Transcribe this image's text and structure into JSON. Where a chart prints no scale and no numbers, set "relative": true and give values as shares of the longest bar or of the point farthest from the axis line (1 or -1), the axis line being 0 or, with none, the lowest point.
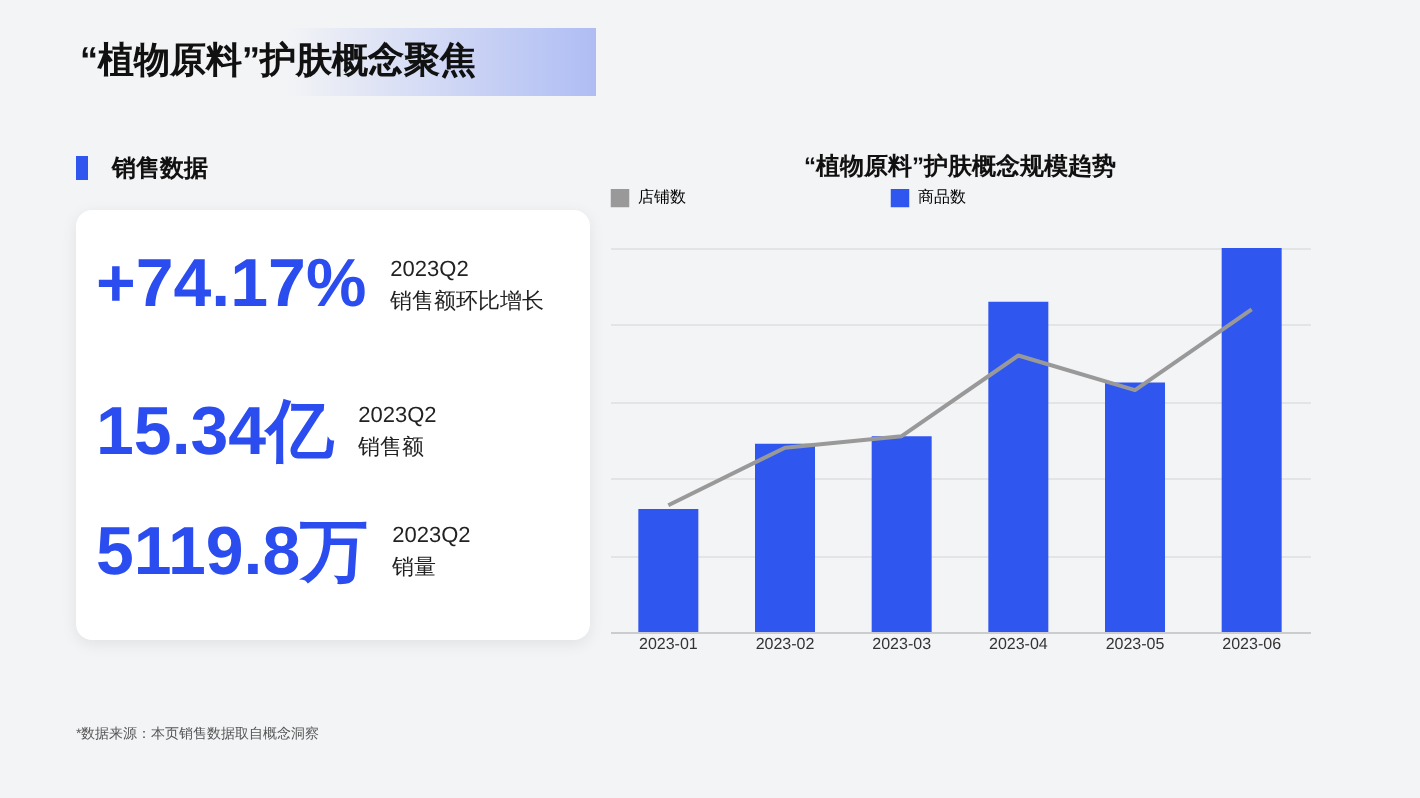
{
  "chart_data": [
    {
      "type": "other",
      "title": "“植物原料”护肤概念聚焦",
      "subtitle": "销售数据",
      "annotations": [
        "+74.17%",
        "2023Q2",
        "销售额环比增长",
        "15.34亿",
        "2023Q2",
        "销售额",
        "5119.8万",
        "2023Q2",
        "销量",
        "*数据来源：本页销售数据取自概念洞察"
      ]
    },
    {
      "type": "bar",
      "title": "“植物原料”护肤概念规模趋势",
      "relative": true,
      "grid": "y",
      "legend": "top",
      "categories": [
        "2023-01",
        "2023-02",
        "2023-03",
        "2023-04",
        "2023-05",
        "2023-06"
      ],
      "series": [
        {
          "name": "店铺数",
          "type": "line",
          "color": "#999999",
          "values": [
            0.33,
            0.48,
            0.51,
            0.72,
            0.63,
            0.84
          ]
        },
        {
          "name": "商品数",
          "type": "bar",
          "color": "#3056f0",
          "values": [
            0.32,
            0.49,
            0.51,
            0.86,
            0.65,
            1
          ]
        }
      ]
    }
  ]
}
